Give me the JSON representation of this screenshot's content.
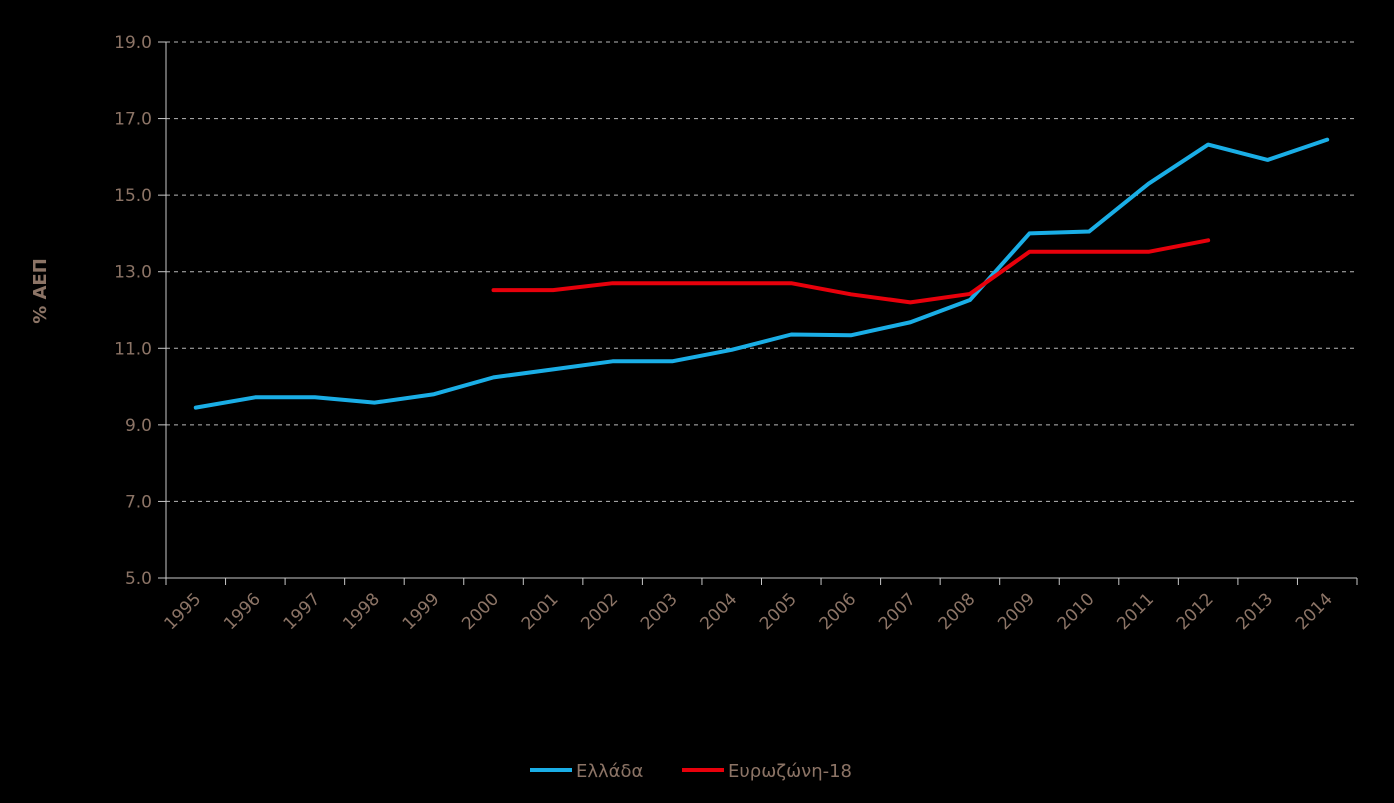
{
  "chart_data": {
    "type": "line",
    "title": "",
    "xlabel": "",
    "ylabel": "% ΑΕΠ",
    "categories": [
      "1995",
      "1996",
      "1997",
      "1998",
      "1999",
      "2000",
      "2001",
      "2002",
      "2003",
      "2004",
      "2005",
      "2006",
      "2007",
      "2008",
      "2009",
      "2010",
      "2011",
      "2012",
      "2013",
      "2014"
    ],
    "ylim": [
      5.0,
      19.0
    ],
    "yticks": [
      "5.0",
      "7.0",
      "9.0",
      "11.0",
      "13.0",
      "15.0",
      "17.0",
      "19.0"
    ],
    "grid": true,
    "legend_position": "bottom-center",
    "series": [
      {
        "name": "Ελλάδα",
        "color": "#1aaee6",
        "values": [
          9.45,
          9.72,
          9.72,
          9.58,
          9.8,
          10.24,
          10.45,
          10.66,
          10.66,
          10.96,
          11.36,
          11.34,
          11.68,
          12.26,
          14.0,
          14.05,
          15.3,
          16.32,
          15.92,
          16.45
        ]
      },
      {
        "name": "Ευρωζώνη-18",
        "color": "#e8000b",
        "values": [
          null,
          null,
          null,
          null,
          null,
          12.52,
          12.52,
          12.7,
          12.7,
          12.7,
          12.7,
          12.41,
          12.2,
          12.42,
          13.52,
          13.52,
          13.52,
          13.82,
          null,
          null
        ]
      }
    ]
  }
}
